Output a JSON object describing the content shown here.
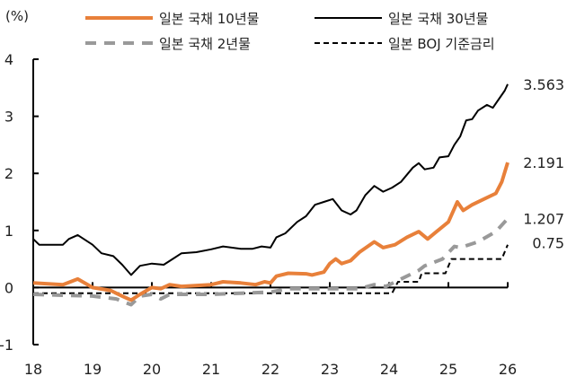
{
  "chart_data": {
    "type": "line",
    "ylabel": "(%)",
    "xlim": [
      18,
      26
    ],
    "ylim": [
      -1,
      4
    ],
    "xticks": [
      "18",
      "19",
      "20",
      "21",
      "22",
      "23",
      "24",
      "25",
      "26"
    ],
    "yticks": [
      "-1",
      "0",
      "1",
      "2",
      "3",
      "4"
    ],
    "grid": false,
    "legend": "top",
    "series": [
      {
        "name": "일본 국채 10년물",
        "color": "#E8803A",
        "style": "solid-thick",
        "end_label": "2.191",
        "x": [
          18,
          18.5,
          18.75,
          19,
          19.3,
          19.5,
          19.65,
          19.8,
          20,
          20.15,
          20.3,
          20.5,
          21,
          21.2,
          21.5,
          21.75,
          21.9,
          22,
          22.1,
          22.3,
          22.6,
          22.7,
          22.9,
          23,
          23.1,
          23.2,
          23.35,
          23.5,
          23.75,
          23.9,
          24.1,
          24.3,
          24.5,
          24.65,
          24.8,
          25,
          25.15,
          25.25,
          25.4,
          25.6,
          25.8,
          25.9,
          26
        ],
        "y": [
          0.08,
          0.05,
          0.15,
          0.0,
          -0.05,
          -0.15,
          -0.22,
          -0.12,
          0.0,
          -0.02,
          0.05,
          0.02,
          0.05,
          0.1,
          0.08,
          0.05,
          0.1,
          0.08,
          0.2,
          0.25,
          0.24,
          0.22,
          0.27,
          0.42,
          0.5,
          0.42,
          0.47,
          0.62,
          0.8,
          0.7,
          0.75,
          0.88,
          0.98,
          0.85,
          0.98,
          1.15,
          1.5,
          1.35,
          1.45,
          1.55,
          1.65,
          1.85,
          2.191
        ]
      },
      {
        "name": "일본 국채 30년물",
        "color": "#000000",
        "style": "solid",
        "end_label": "3.563",
        "x": [
          18,
          18.1,
          18.5,
          18.6,
          18.75,
          19,
          19.15,
          19.35,
          19.5,
          19.65,
          19.8,
          20,
          20.2,
          20.35,
          20.5,
          20.75,
          21,
          21.2,
          21.5,
          21.7,
          21.85,
          22,
          22.1,
          22.25,
          22.45,
          22.6,
          22.75,
          22.9,
          23.05,
          23.2,
          23.35,
          23.45,
          23.6,
          23.75,
          23.9,
          24.05,
          24.2,
          24.4,
          24.5,
          24.6,
          24.75,
          24.85,
          25,
          25.1,
          25.2,
          25.3,
          25.4,
          25.5,
          25.65,
          25.75,
          25.85,
          25.95,
          26
        ],
        "y": [
          0.85,
          0.75,
          0.75,
          0.85,
          0.92,
          0.75,
          0.6,
          0.55,
          0.4,
          0.22,
          0.38,
          0.42,
          0.4,
          0.5,
          0.6,
          0.62,
          0.67,
          0.72,
          0.68,
          0.68,
          0.72,
          0.7,
          0.88,
          0.95,
          1.15,
          1.25,
          1.45,
          1.5,
          1.55,
          1.35,
          1.28,
          1.35,
          1.62,
          1.78,
          1.68,
          1.75,
          1.85,
          2.1,
          2.18,
          2.07,
          2.1,
          2.28,
          2.3,
          2.5,
          2.65,
          2.93,
          2.95,
          3.1,
          3.2,
          3.15,
          3.3,
          3.45,
          3.563
        ]
      },
      {
        "name": "일본 국채 2년물",
        "color": "#999999",
        "style": "dashed-thick",
        "end_label": "1.207",
        "x": [
          18,
          19,
          19.4,
          19.65,
          19.8,
          20,
          20.15,
          20.3,
          21,
          22,
          22.3,
          23,
          23.5,
          23.75,
          23.95,
          24.2,
          24.5,
          24.6,
          24.9,
          25.1,
          25.2,
          25.5,
          25.8,
          26
        ],
        "y": [
          -0.12,
          -0.15,
          -0.2,
          -0.3,
          -0.15,
          -0.12,
          -0.2,
          -0.12,
          -0.12,
          -0.08,
          -0.02,
          -0.02,
          -0.02,
          0.05,
          0.02,
          0.15,
          0.3,
          0.38,
          0.5,
          0.72,
          0.7,
          0.8,
          0.98,
          1.207
        ]
      },
      {
        "name": "일본 BOJ 기준금리",
        "color": "#000000",
        "style": "dashed",
        "end_label": "0.75",
        "x": [
          18,
          24.05,
          24.15,
          24.5,
          24.55,
          24.95,
          25.05,
          25.9,
          26
        ],
        "y": [
          -0.1,
          -0.1,
          0.1,
          0.1,
          0.25,
          0.25,
          0.5,
          0.5,
          0.75
        ]
      }
    ]
  }
}
